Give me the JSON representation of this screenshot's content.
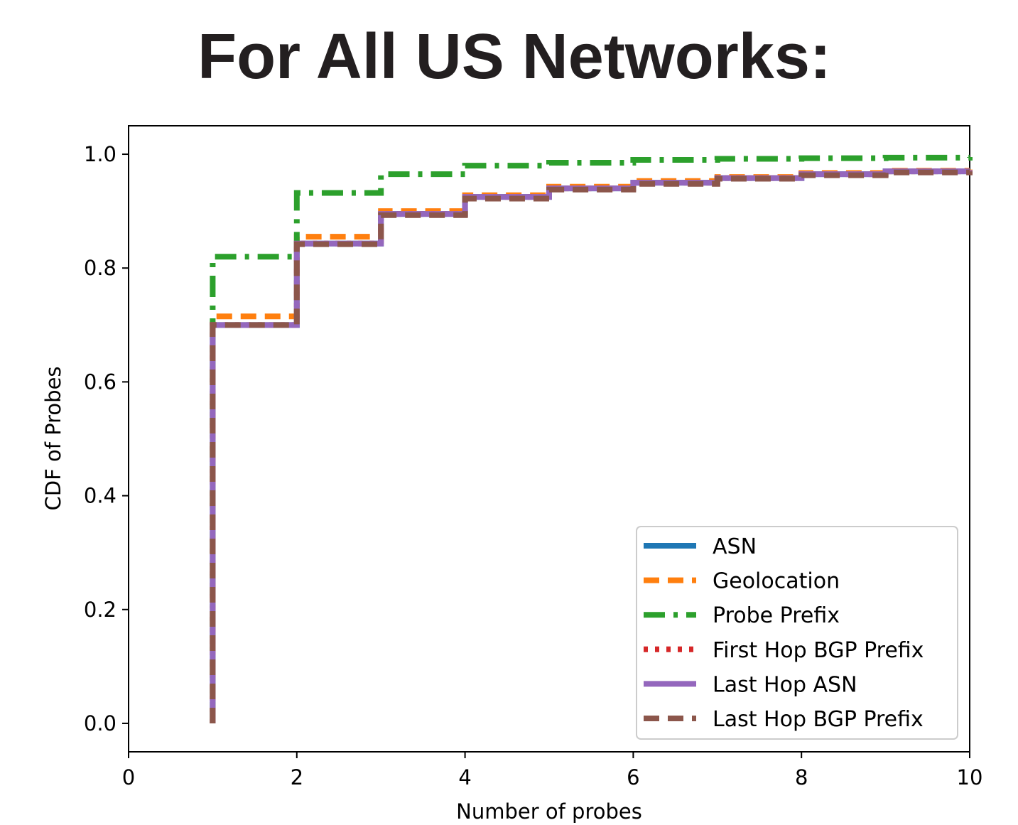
{
  "chart_data": {
    "type": "line",
    "title": "For All US Networks:",
    "xlabel": "Number of probes",
    "ylabel": "CDF of Probes",
    "xlim": [
      0,
      10
    ],
    "ylim": [
      -0.05,
      1.05
    ],
    "xticks": [
      "0",
      "2",
      "4",
      "6",
      "8",
      "10"
    ],
    "yticks": [
      "0.0",
      "0.2",
      "0.4",
      "0.6",
      "0.8",
      "1.0"
    ],
    "legend_position": "lower-right",
    "step": "post",
    "series": [
      {
        "name": "ASN",
        "color": "#1f77b4",
        "style": "solid",
        "x": [
          1,
          1,
          2,
          3,
          4,
          5,
          6,
          7,
          8,
          9,
          10
        ],
        "y": [
          0.0,
          0.7,
          0.843,
          0.895,
          0.925,
          0.94,
          0.95,
          0.958,
          0.965,
          0.97,
          0.972
        ]
      },
      {
        "name": "Geolocation",
        "color": "#ff7f0e",
        "style": "dashed",
        "x": [
          1,
          1,
          2,
          3,
          4,
          5,
          6,
          7,
          8,
          9,
          10
        ],
        "y": [
          0.0,
          0.715,
          0.855,
          0.9,
          0.928,
          0.943,
          0.953,
          0.96,
          0.967,
          0.971,
          0.973
        ]
      },
      {
        "name": "Probe Prefix",
        "color": "#2ca02c",
        "style": "dashdot",
        "x": [
          1,
          1,
          2,
          3,
          4,
          5,
          6,
          7,
          8,
          9,
          10
        ],
        "y": [
          0.0,
          0.82,
          0.932,
          0.965,
          0.98,
          0.985,
          0.99,
          0.992,
          0.993,
          0.994,
          0.995
        ]
      },
      {
        "name": "First Hop BGP Prefix",
        "color": "#d62728",
        "style": "dotted",
        "x": [
          1,
          1,
          2,
          3,
          4,
          5,
          6,
          7,
          8,
          9,
          10
        ],
        "y": [
          0.0,
          0.7,
          0.843,
          0.895,
          0.925,
          0.94,
          0.95,
          0.958,
          0.965,
          0.97,
          0.972
        ]
      },
      {
        "name": "Last Hop ASN",
        "color": "#9467bd",
        "style": "solid",
        "x": [
          1,
          1,
          2,
          3,
          4,
          5,
          6,
          7,
          8,
          9,
          10
        ],
        "y": [
          0.0,
          0.7,
          0.843,
          0.895,
          0.925,
          0.94,
          0.95,
          0.958,
          0.965,
          0.97,
          0.972
        ]
      },
      {
        "name": "Last Hop BGP Prefix",
        "color": "#8c564b",
        "style": "dashed",
        "x": [
          1,
          1,
          2,
          3,
          4,
          5,
          6,
          7,
          8,
          9,
          10
        ],
        "y": [
          0.0,
          0.7,
          0.842,
          0.893,
          0.922,
          0.938,
          0.948,
          0.957,
          0.963,
          0.968,
          0.97
        ]
      }
    ]
  }
}
